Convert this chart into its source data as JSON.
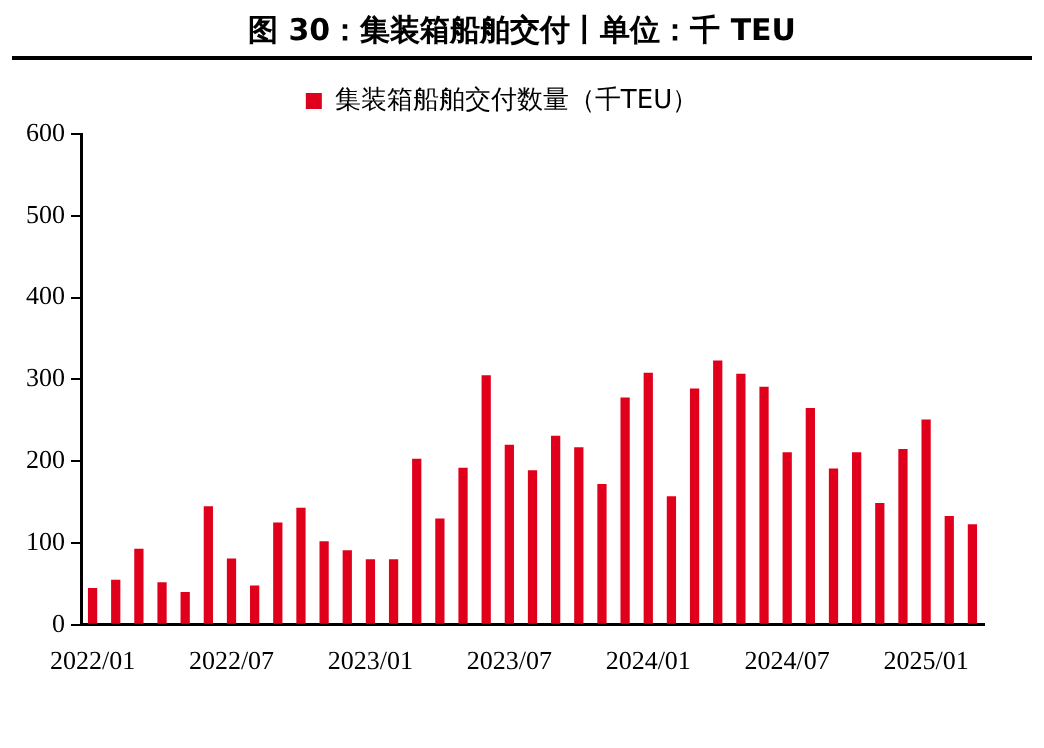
{
  "chart_data": {
    "type": "bar",
    "title": "图 30：集装箱船舶交付丨单位：千 TEU",
    "categories": [
      "2022/01",
      null,
      null,
      null,
      null,
      null,
      "2022/07",
      null,
      null,
      null,
      null,
      null,
      "2023/01",
      null,
      null,
      null,
      null,
      null,
      "2023/07",
      null,
      null,
      null,
      null,
      null,
      "2024/01",
      null,
      null,
      null,
      null,
      null,
      "2024/07",
      null,
      null,
      null,
      null,
      null,
      "2025/01",
      null,
      null
    ],
    "series": [
      {
        "name": "集装箱船舶交付数量（千TEU）",
        "color": "#e0001b",
        "values": [
          45,
          55,
          93,
          52,
          40,
          145,
          81,
          48,
          125,
          143,
          102,
          91,
          80,
          80,
          203,
          130,
          192,
          305,
          220,
          189,
          231,
          217,
          172,
          278,
          308,
          157,
          289,
          323,
          307,
          291,
          211,
          265,
          191,
          211,
          149,
          215,
          251,
          133,
          123
        ]
      }
    ],
    "ylim": [
      0,
      600
    ],
    "yticks": [
      0,
      100,
      200,
      300,
      400,
      500,
      600
    ],
    "grid": false,
    "legend": "top"
  }
}
